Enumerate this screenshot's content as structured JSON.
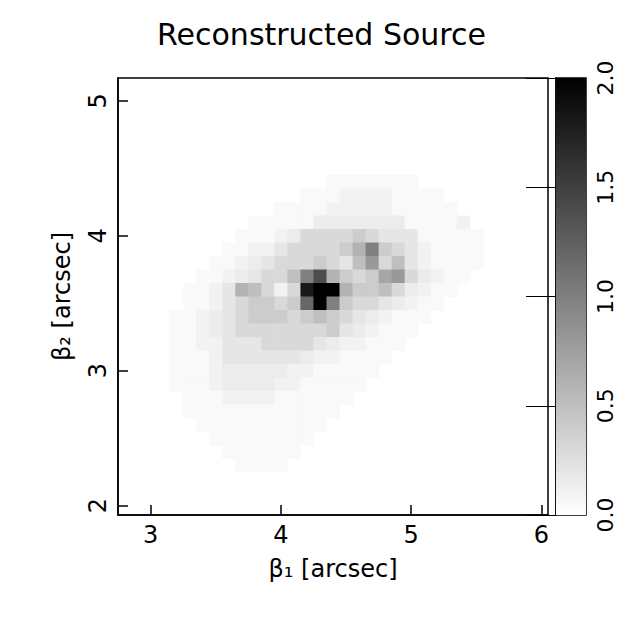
{
  "chart_data": {
    "type": "heatmap",
    "title": "Reconstructed Source",
    "xlabel": "β₁ [arcsec]",
    "ylabel": "β₂ [arcsec]",
    "xlim": [
      2.75,
      6.05
    ],
    "ylim": [
      1.93,
      5.17
    ],
    "xticks": [
      3,
      4,
      5,
      6
    ],
    "yticks": [
      2,
      3,
      4,
      5
    ],
    "x": [
      3.2,
      3.3,
      3.4,
      3.5,
      3.6,
      3.7,
      3.8,
      3.9,
      4.0,
      4.1,
      4.2,
      4.3,
      4.4,
      4.5,
      4.6,
      4.7,
      4.8,
      4.9,
      5.0,
      5.1,
      5.2,
      5.3,
      5.4,
      5.5
    ],
    "y": [
      4.4,
      4.3,
      4.2,
      4.1,
      4.0,
      3.9,
      3.8,
      3.7,
      3.6,
      3.5,
      3.4,
      3.3,
      3.2,
      3.1,
      3.0,
      2.9,
      2.8,
      2.7,
      2.6,
      2.5,
      2.4,
      2.3
    ],
    "z": [
      [
        0,
        0,
        0,
        0,
        0,
        0,
        0,
        0,
        0,
        0,
        0,
        0,
        0.05,
        0.05,
        0.05,
        0.05,
        0.05,
        0.05,
        0.05,
        0,
        0,
        0,
        0,
        0
      ],
      [
        0,
        0,
        0,
        0,
        0,
        0,
        0,
        0,
        0,
        0,
        0.05,
        0.05,
        0.05,
        0.1,
        0.1,
        0.1,
        0.1,
        0.05,
        0.05,
        0.05,
        0.05,
        0,
        0,
        0
      ],
      [
        0,
        0,
        0,
        0,
        0,
        0,
        0,
        0,
        0.05,
        0.05,
        0.05,
        0.05,
        0.1,
        0.1,
        0.1,
        0.1,
        0.1,
        0.05,
        0.05,
        0.05,
        0.05,
        0.05,
        0,
        0
      ],
      [
        0,
        0,
        0,
        0,
        0,
        0,
        0.05,
        0.05,
        0.05,
        0.05,
        0.05,
        0.15,
        0.15,
        0.15,
        0.15,
        0.15,
        0.15,
        0.15,
        0.05,
        0.05,
        0.05,
        0.05,
        0.1,
        0
      ],
      [
        0,
        0,
        0,
        0,
        0,
        0.05,
        0.05,
        0.05,
        0.1,
        0.15,
        0.3,
        0.3,
        0.3,
        0.3,
        0.4,
        0.3,
        0.2,
        0.2,
        0.2,
        0.05,
        0.05,
        0.05,
        0.05,
        0.05
      ],
      [
        0,
        0,
        0,
        0,
        0.05,
        0.05,
        0.1,
        0.1,
        0.2,
        0.3,
        0.3,
        0.3,
        0.3,
        0.4,
        0.6,
        1.0,
        0.4,
        0.3,
        0.2,
        0.1,
        0.05,
        0.05,
        0.05,
        0.05
      ],
      [
        0,
        0,
        0,
        0.05,
        0.05,
        0.1,
        0.15,
        0.2,
        0.3,
        0.3,
        0.3,
        0.4,
        0.3,
        0.2,
        0.5,
        0.8,
        0.3,
        0.5,
        0.2,
        0.1,
        0.05,
        0.05,
        0.05,
        0.05
      ],
      [
        0,
        0,
        0.05,
        0.05,
        0.1,
        0.15,
        0.2,
        0.3,
        0.3,
        0.5,
        1.0,
        1.4,
        0.6,
        0.4,
        0.3,
        0.4,
        0.7,
        0.8,
        0.3,
        0.15,
        0.1,
        0.05,
        0.05,
        0
      ],
      [
        0,
        0.05,
        0.05,
        0.1,
        0.2,
        0.6,
        0.5,
        0.3,
        0.1,
        0.3,
        1.8,
        2.0,
        2.0,
        0.6,
        0.4,
        0.4,
        0.5,
        0.3,
        0.15,
        0.1,
        0.05,
        0.05,
        0,
        0
      ],
      [
        0,
        0.05,
        0.05,
        0.1,
        0.2,
        0.3,
        0.4,
        0.4,
        0.3,
        0.4,
        1.2,
        2.0,
        1.0,
        0.4,
        0.3,
        0.3,
        0.2,
        0.15,
        0.1,
        0.05,
        0.05,
        0,
        0,
        0
      ],
      [
        0.05,
        0.05,
        0.1,
        0.15,
        0.2,
        0.3,
        0.4,
        0.4,
        0.4,
        0.3,
        0.4,
        0.5,
        0.4,
        0.3,
        0.2,
        0.15,
        0.1,
        0.05,
        0.05,
        0.05,
        0,
        0,
        0,
        0
      ],
      [
        0.05,
        0.05,
        0.1,
        0.15,
        0.2,
        0.3,
        0.3,
        0.3,
        0.3,
        0.3,
        0.3,
        0.3,
        0.4,
        0.2,
        0.15,
        0.1,
        0.05,
        0.05,
        0.05,
        0,
        0,
        0,
        0,
        0
      ],
      [
        0.05,
        0.05,
        0.1,
        0.1,
        0.2,
        0.2,
        0.2,
        0.3,
        0.3,
        0.3,
        0.3,
        0.2,
        0.15,
        0.1,
        0.1,
        0.05,
        0.05,
        0.05,
        0,
        0,
        0,
        0,
        0,
        0
      ],
      [
        0.05,
        0.05,
        0.05,
        0.1,
        0.2,
        0.2,
        0.2,
        0.2,
        0.2,
        0.2,
        0.15,
        0.1,
        0.1,
        0.05,
        0.05,
        0.05,
        0.05,
        0,
        0,
        0,
        0,
        0,
        0,
        0
      ],
      [
        0.05,
        0.05,
        0.05,
        0.1,
        0.15,
        0.15,
        0.15,
        0.15,
        0.15,
        0.1,
        0.1,
        0.05,
        0.05,
        0.05,
        0.05,
        0.05,
        0,
        0,
        0,
        0,
        0,
        0,
        0,
        0
      ],
      [
        0.05,
        0.05,
        0.05,
        0.1,
        0.15,
        0.15,
        0.15,
        0.15,
        0.1,
        0.1,
        0.05,
        0.05,
        0.05,
        0.05,
        0.05,
        0,
        0,
        0,
        0,
        0,
        0,
        0,
        0,
        0
      ],
      [
        0,
        0.05,
        0.05,
        0.05,
        0.1,
        0.1,
        0.1,
        0.1,
        0.05,
        0.05,
        0.05,
        0.05,
        0.05,
        0.05,
        0,
        0,
        0,
        0,
        0,
        0,
        0,
        0,
        0,
        0
      ],
      [
        0,
        0.05,
        0.05,
        0.05,
        0.05,
        0.05,
        0.05,
        0.05,
        0.05,
        0.05,
        0.05,
        0.05,
        0.05,
        0,
        0,
        0,
        0,
        0,
        0,
        0,
        0,
        0,
        0,
        0
      ],
      [
        0,
        0,
        0.05,
        0.05,
        0.05,
        0.05,
        0.05,
        0.05,
        0.05,
        0.05,
        0.05,
        0.05,
        0,
        0,
        0,
        0,
        0,
        0,
        0,
        0,
        0,
        0,
        0,
        0
      ],
      [
        0,
        0,
        0,
        0.05,
        0.05,
        0.05,
        0.05,
        0.05,
        0.05,
        0.05,
        0.05,
        0,
        0,
        0,
        0,
        0,
        0,
        0,
        0,
        0,
        0,
        0,
        0,
        0
      ],
      [
        0,
        0,
        0,
        0,
        0.05,
        0.05,
        0.05,
        0.05,
        0.05,
        0.05,
        0,
        0,
        0,
        0,
        0,
        0,
        0,
        0,
        0,
        0,
        0,
        0,
        0,
        0
      ],
      [
        0,
        0,
        0,
        0,
        0,
        0.05,
        0.05,
        0.05,
        0.05,
        0,
        0,
        0,
        0,
        0,
        0,
        0,
        0,
        0,
        0,
        0,
        0,
        0,
        0,
        0
      ]
    ],
    "colorbar": {
      "range": [
        0,
        2
      ],
      "ticks": [
        {
          "value": 0,
          "label": "0.0"
        },
        {
          "value": 0.5,
          "label": "0.5"
        },
        {
          "value": 1,
          "label": "1.0"
        },
        {
          "value": 1.5,
          "label": "1.5"
        },
        {
          "value": 2,
          "label": "2.0"
        }
      ]
    }
  }
}
